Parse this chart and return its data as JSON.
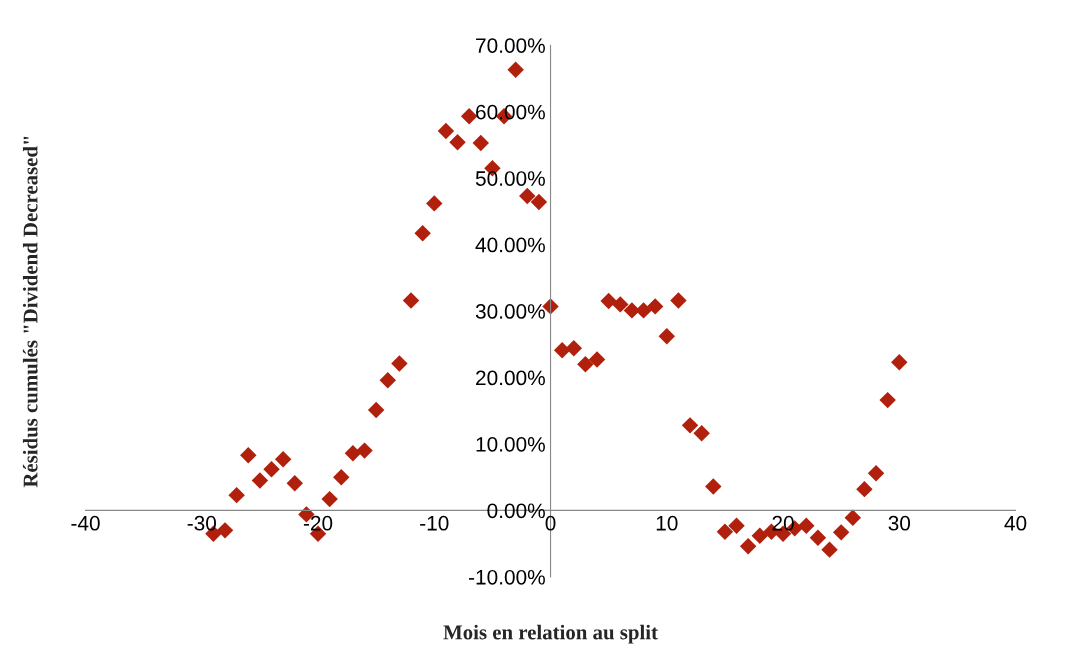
{
  "chart_data": {
    "type": "scatter",
    "xlabel": "Mois en relation au split",
    "ylabel": "Résidus cumulés \"Dividend Decreased\"",
    "x": [
      -29,
      -28,
      -27,
      -26,
      -25,
      -24,
      -23,
      -22,
      -21,
      -20,
      -19,
      -18,
      -17,
      -16,
      -15,
      -14,
      -13,
      -12,
      -11,
      -10,
      -9,
      -8,
      -7,
      -6,
      -5,
      -4,
      -3,
      -2,
      -1,
      0,
      1,
      2,
      3,
      4,
      5,
      6,
      7,
      8,
      9,
      10,
      11,
      12,
      13,
      14,
      15,
      16,
      17,
      18,
      19,
      20,
      21,
      22,
      23,
      24,
      25,
      26,
      27,
      28,
      29,
      30
    ],
    "series": [
      {
        "color": "#b0200c",
        "values": [
          -3.5,
          -3.0,
          2.3,
          8.3,
          4.5,
          6.2,
          7.7,
          4.1,
          -0.6,
          -3.5,
          1.7,
          5.0,
          8.6,
          9.0,
          15.1,
          19.6,
          22.1,
          31.6,
          41.7,
          46.2,
          57.1,
          55.4,
          59.3,
          55.3,
          51.5,
          59.3,
          66.3,
          47.3,
          46.4,
          30.7,
          24.1,
          24.4,
          22.0,
          22.7,
          31.5,
          31.0,
          30.1,
          30.1,
          30.7,
          26.2,
          31.6,
          12.8,
          11.6,
          3.6,
          -3.2,
          -2.3,
          -5.4,
          -3.8,
          -3.2,
          -3.5,
          -2.7,
          -2.3,
          -4.1,
          -5.9,
          -3.3,
          -1.1,
          3.2,
          5.6,
          16.6,
          22.3
        ]
      }
    ],
    "marker": "diamond",
    "xlim": [
      -40,
      40
    ],
    "xticks": [
      -40,
      -30,
      -20,
      -10,
      0,
      10,
      20,
      30,
      40
    ],
    "ylim": [
      -10,
      70
    ],
    "yticks": [
      {
        "value": -10,
        "label": "-10.00%"
      },
      {
        "value": 0,
        "label": "0.00%"
      },
      {
        "value": 10,
        "label": "10.00%"
      },
      {
        "value": 20,
        "label": "20.00%"
      },
      {
        "value": 30,
        "label": "30.00%"
      },
      {
        "value": 40,
        "label": "40.00%"
      },
      {
        "value": 50,
        "label": "50.00%"
      },
      {
        "value": 60,
        "label": "60.00%"
      },
      {
        "value": 70,
        "label": "70.00%"
      }
    ],
    "grid": false,
    "legend": false
  }
}
